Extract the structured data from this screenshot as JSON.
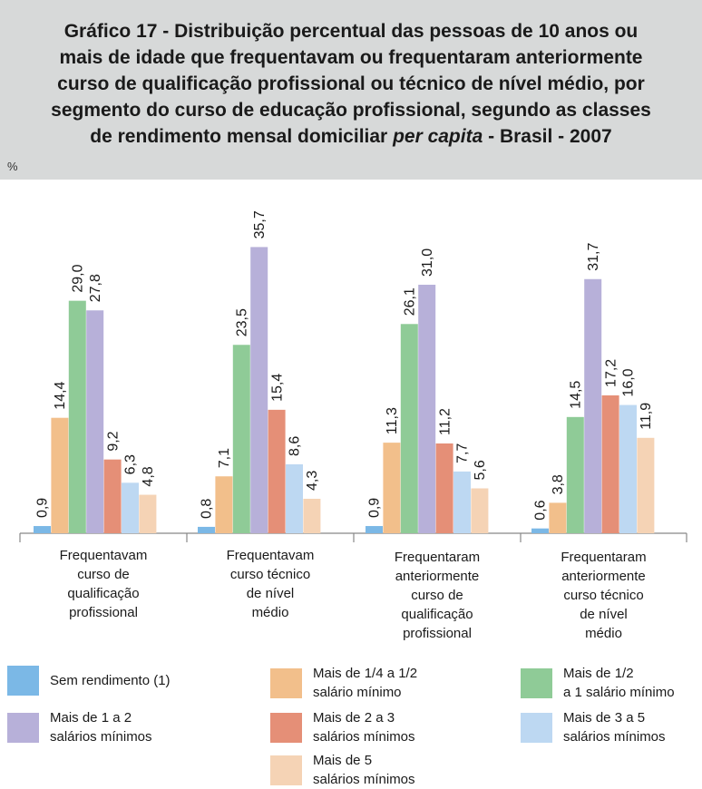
{
  "title_line1": "Gráfico 17 - Distribuição percentual das pessoas de 10 anos ou",
  "title_line2": "mais de idade que frequentavam ou frequentaram anteriormente",
  "title_line3": "curso de qualificação profissional ou técnico de nível médio, por",
  "title_line4": "segmento do curso de educação profissional, segundo as classes",
  "title_line5_a": "de rendimento mensal domiciliar ",
  "title_line5_b": "per capita",
  "title_line5_c": " - Brasil - 2007",
  "unit_label": "%",
  "chart_data": {
    "type": "bar",
    "ylim": [
      0,
      40
    ],
    "grid": false,
    "legend_position": "bottom",
    "categories": [
      [
        "Frequentavam",
        "curso de",
        "qualificação",
        "profissional"
      ],
      [
        "Frequentavam",
        "curso técnico",
        "de nível",
        "médio"
      ],
      [
        "Frequentaram",
        "anteriormente",
        "curso de",
        "qualificação",
        "profissional"
      ],
      [
        "Frequentaram",
        "anteriormente",
        "curso técnico",
        "de nível",
        "médio"
      ]
    ],
    "series": [
      {
        "name": "Sem rendimento (1)",
        "legend_lines": [
          "Sem rendimento (1)"
        ],
        "color": "#7bb8e6",
        "values": [
          0.9,
          0.8,
          0.9,
          0.6
        ],
        "labels": [
          "0,9",
          "0,8",
          "0,9",
          "0,6"
        ]
      },
      {
        "name": "Mais de 1/4 a 1/2 salário mínimo",
        "legend_lines": [
          "Mais de 1/4 a 1/2",
          "salário mínimo"
        ],
        "color": "#f2bf8b",
        "values": [
          14.4,
          7.1,
          11.3,
          3.8
        ],
        "labels": [
          "14,4",
          "7,1",
          "11,3",
          "3,8"
        ]
      },
      {
        "name": "Mais de 1/2 a 1 salário mínimo",
        "legend_lines": [
          "Mais de 1/2",
          "a 1 salário mínimo"
        ],
        "color": "#8fcb97",
        "values": [
          29.0,
          23.5,
          26.1,
          14.5
        ],
        "labels": [
          "29,0",
          "23,5",
          "26,1",
          "14,5"
        ]
      },
      {
        "name": "Mais de 1 a 2 salários mínimos",
        "legend_lines": [
          "Mais de 1 a 2",
          "salários mínimos"
        ],
        "color": "#b7b0d9",
        "values": [
          27.8,
          35.7,
          31.0,
          31.7
        ],
        "labels": [
          "27,8",
          "35,7",
          "31,0",
          "31,7"
        ]
      },
      {
        "name": "Mais de 2 a 3 salários mínimos",
        "legend_lines": [
          "Mais de 2 a 3",
          "salários mínimos"
        ],
        "color": "#e58f77",
        "values": [
          9.2,
          15.4,
          11.2,
          17.2
        ],
        "labels": [
          "9,2",
          "15,4",
          "11,2",
          "17,2"
        ]
      },
      {
        "name": "Mais de 3 a 5 salários mínimos",
        "legend_lines": [
          "Mais de 3 a 5",
          "salários mínimos"
        ],
        "color": "#bdd8f2",
        "values": [
          6.3,
          8.6,
          7.7,
          16.0
        ],
        "labels": [
          "6,3",
          "8,6",
          "7,7",
          "16,0"
        ]
      },
      {
        "name": "Mais de 5 salários mínimos",
        "legend_lines": [
          "Mais de 5",
          "salários mínimos"
        ],
        "color": "#f5d3b5",
        "values": [
          4.8,
          4.3,
          5.6,
          11.9
        ],
        "labels": [
          "4,8",
          "4,3",
          "5,6",
          "11,9"
        ]
      }
    ]
  }
}
